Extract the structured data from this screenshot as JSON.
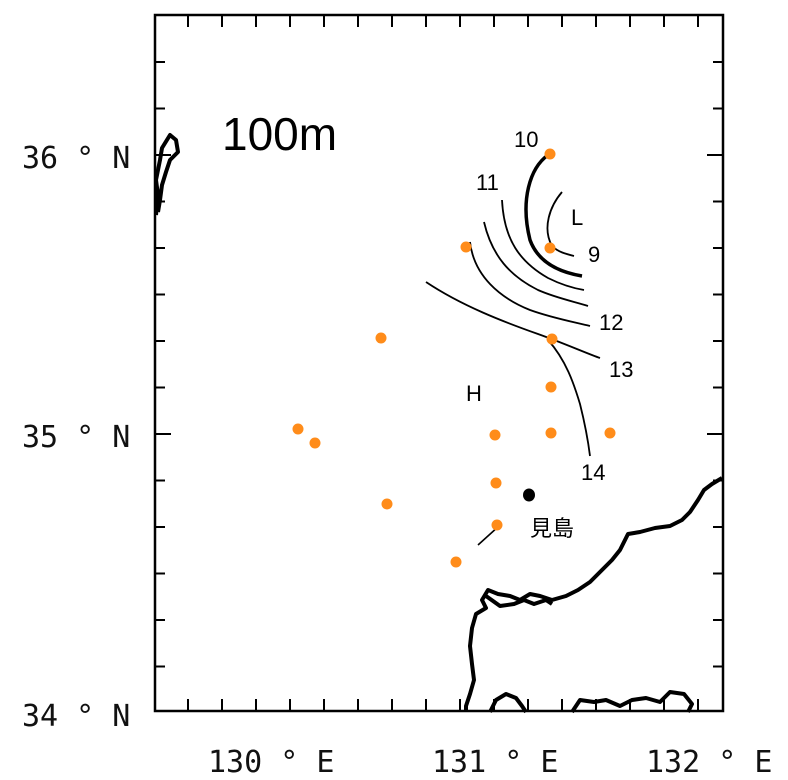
{
  "map": {
    "depth_label": "100m",
    "lat_labels": [
      "36°N",
      "35°N",
      "34°N"
    ],
    "lon_labels": [
      "130°E",
      "131°E",
      "132°E"
    ],
    "lat_label_text": [
      "36 ° N",
      "35 ° N",
      "34 ° N"
    ],
    "lon_label_text": [
      "130 ° E",
      "131 ° E",
      "132 ° E"
    ],
    "extent": {
      "lon_min": 129.55,
      "lon_max": 132.0,
      "lat_min": 34.0,
      "lat_max": 36.5
    },
    "contour_labels": [
      "10",
      "11",
      "9",
      "12",
      "13",
      "14"
    ],
    "low_label": "L",
    "high_label": "H",
    "island_label": "見島",
    "station_color": "#ff8c1a",
    "station_count": 16
  }
}
